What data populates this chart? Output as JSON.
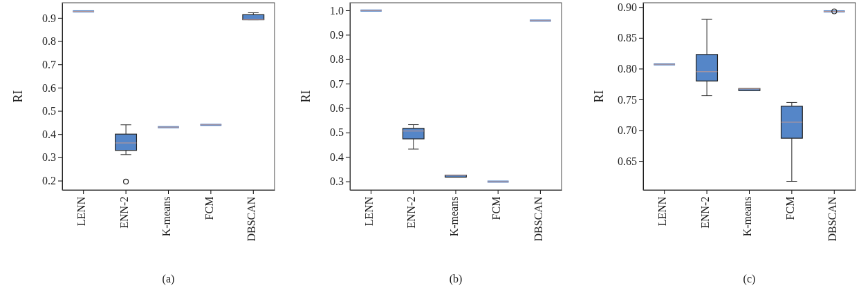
{
  "chart_data": [
    {
      "type": "box",
      "xlabel": "(a)",
      "ylabel": "RI",
      "color": "#5586c8",
      "categories": [
        "LENN",
        "ENN-2",
        "K-means",
        "FCM",
        "DBSCAN"
      ],
      "ylim": [
        0.16,
        0.965
      ],
      "yticks": [
        0.2,
        0.3,
        0.4,
        0.5,
        0.6,
        0.7,
        0.8,
        0.9
      ],
      "boxes": [
        {
          "low": 0.928,
          "q1": 0.928,
          "median": 0.928,
          "q3": 0.928,
          "high": 0.928
        },
        {
          "low": 0.312,
          "q1": 0.33,
          "median": 0.362,
          "q3": 0.4,
          "high": 0.44,
          "outliers": [
            0.196
          ]
        },
        {
          "low": 0.43,
          "q1": 0.43,
          "median": 0.43,
          "q3": 0.43,
          "high": 0.43
        },
        {
          "low": 0.44,
          "q1": 0.44,
          "median": 0.44,
          "q3": 0.44,
          "high": 0.44
        },
        {
          "low": 0.892,
          "q1": 0.892,
          "median": 0.893,
          "q3": 0.914,
          "high": 0.922
        }
      ]
    },
    {
      "type": "box",
      "xlabel": "(b)",
      "ylabel": "RI",
      "color": "#5586c8",
      "categories": [
        "LENN",
        "ENN-2",
        "K-means",
        "FCM",
        "DBSCAN"
      ],
      "ylim": [
        0.265,
        1.031
      ],
      "yticks": [
        {
          "value": 0.3,
          "label": "0.3"
        },
        {
          "value": 0.4,
          "label": "0.4"
        },
        {
          "value": 0.5,
          "label": "0.5"
        },
        {
          "value": 0.6,
          "label": "0.6"
        },
        {
          "value": 0.7,
          "label": "0.7"
        },
        {
          "value": 0.8,
          "label": "0.8"
        },
        {
          "value": 0.9,
          "label": "0.9"
        },
        {
          "value": 1.0,
          "label": "1.0"
        }
      ],
      "boxes": [
        {
          "low": 0.999,
          "q1": 0.999,
          "median": 0.999,
          "q3": 0.999,
          "high": 0.999
        },
        {
          "low": 0.432,
          "q1": 0.474,
          "median": 0.506,
          "q3": 0.517,
          "high": 0.532
        },
        {
          "low": 0.318,
          "q1": 0.318,
          "median": 0.325,
          "q3": 0.325,
          "high": 0.325
        },
        {
          "low": 0.299,
          "q1": 0.299,
          "median": 0.299,
          "q3": 0.299,
          "high": 0.299
        },
        {
          "low": 0.958,
          "q1": 0.958,
          "median": 0.958,
          "q3": 0.958,
          "high": 0.958
        }
      ]
    },
    {
      "type": "box",
      "xlabel": "(c)",
      "ylabel": "RI",
      "color": "#5586c8",
      "categories": [
        "LENN",
        "ENN-2",
        "K-means",
        "FCM",
        "DBSCAN"
      ],
      "ylim": [
        0.603,
        0.907
      ],
      "yticks": [
        {
          "value": 0.65,
          "label": "0.65"
        },
        {
          "value": 0.7,
          "label": "0.70"
        },
        {
          "value": 0.75,
          "label": "0.75"
        },
        {
          "value": 0.8,
          "label": "0.80"
        },
        {
          "value": 0.85,
          "label": "0.85"
        },
        {
          "value": 0.9,
          "label": "0.90"
        }
      ],
      "boxes": [
        {
          "low": 0.807,
          "q1": 0.807,
          "median": 0.807,
          "q3": 0.807,
          "high": 0.807
        },
        {
          "low": 0.756,
          "q1": 0.78,
          "median": 0.795,
          "q3": 0.823,
          "high": 0.88
        },
        {
          "low": 0.765,
          "q1": 0.765,
          "median": 0.767,
          "q3": 0.767,
          "high": 0.767
        },
        {
          "low": 0.617,
          "q1": 0.687,
          "median": 0.713,
          "q3": 0.739,
          "high": 0.745
        },
        {
          "low": 0.893,
          "q1": 0.893,
          "median": 0.893,
          "q3": 0.893,
          "high": 0.893,
          "outliers": [
            0.893
          ]
        }
      ]
    }
  ]
}
